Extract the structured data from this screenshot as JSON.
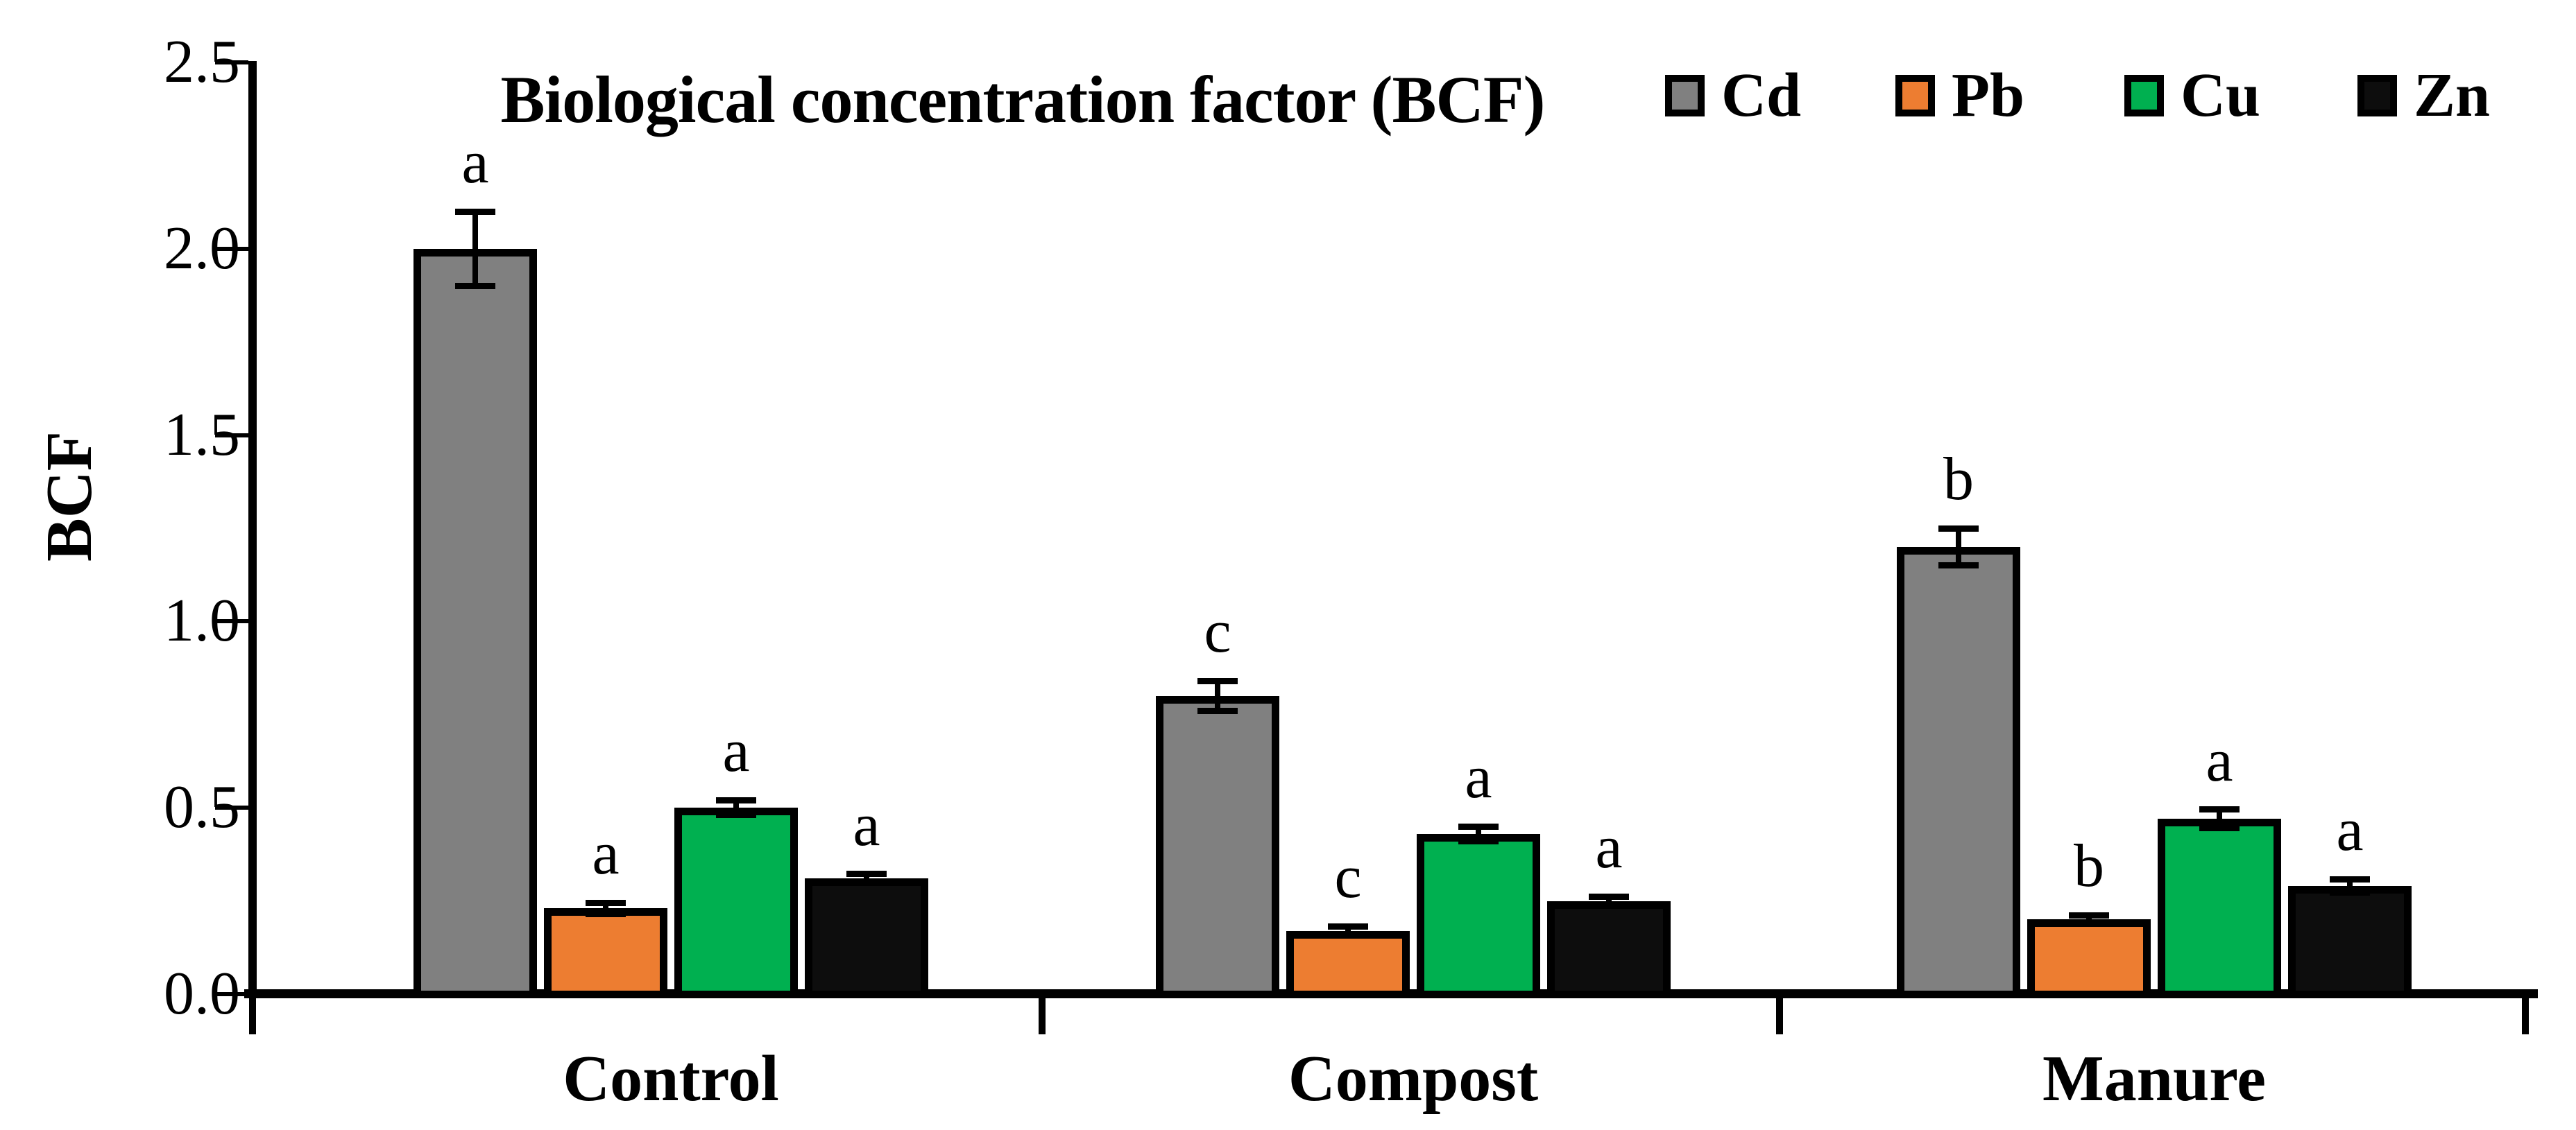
{
  "page": {
    "background": "#ffffff",
    "text_color": "#000000"
  },
  "chart_data": {
    "type": "bar",
    "title": "Biological concentration factor (BCF)",
    "xlabel": "",
    "ylabel": "BCF",
    "ylim": [
      0,
      2.5
    ],
    "ytick_labels": [
      "0.0",
      "0.5",
      "1.0",
      "1.5",
      "2.0",
      "2.5"
    ],
    "grid": false,
    "legend_position": "top-right",
    "axis_color": "#000000",
    "categories": [
      "Control",
      "Compost",
      "Manure"
    ],
    "series": [
      {
        "name": "Cd",
        "color": "#808080",
        "values": [
          2.0,
          0.8,
          1.2
        ],
        "errors": [
          0.1,
          0.04,
          0.05
        ],
        "sig_letters": [
          "a",
          "c",
          "b"
        ]
      },
      {
        "name": "Pb",
        "color": "#ED7D31",
        "values": [
          0.23,
          0.17,
          0.2
        ],
        "errors": [
          0.015,
          0.012,
          0.012
        ],
        "sig_letters": [
          "a",
          "c",
          "b"
        ]
      },
      {
        "name": "Cu",
        "color": "#00B050",
        "values": [
          0.5,
          0.43,
          0.47
        ],
        "errors": [
          0.02,
          0.02,
          0.025
        ],
        "sig_letters": [
          "a",
          "a",
          "a"
        ]
      },
      {
        "name": "Zn",
        "color": "#0D0D0D",
        "values": [
          0.31,
          0.25,
          0.29
        ],
        "errors": [
          0.012,
          0.012,
          0.018
        ],
        "sig_letters": [
          "a",
          "a",
          "a"
        ]
      }
    ]
  }
}
